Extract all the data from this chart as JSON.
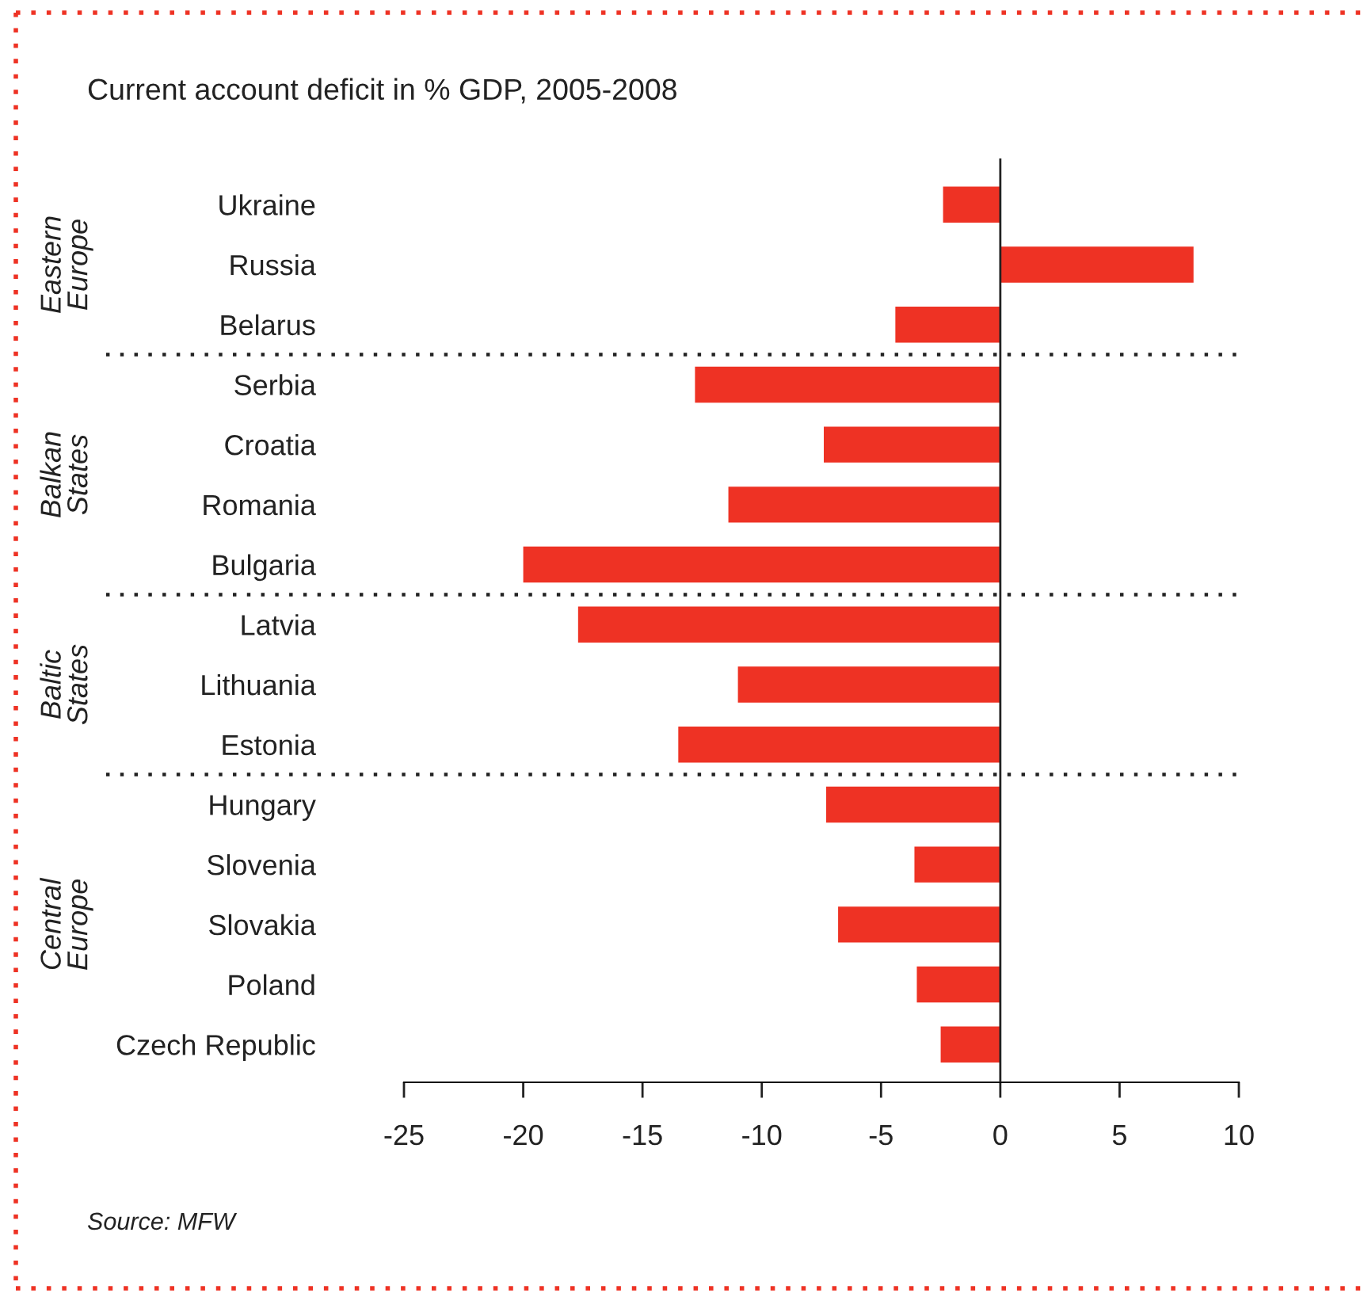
{
  "chart_data": {
    "type": "bar",
    "orientation": "horizontal",
    "title": "Current account deficit in % GDP, 2005-2008",
    "categories": [
      "Ukraine",
      "Russia",
      "Belarus",
      "Serbia",
      "Croatia",
      "Romania",
      "Bulgaria",
      "Latvia",
      "Lithuania",
      "Estonia",
      "Hungary",
      "Slovenia",
      "Slovakia",
      "Poland",
      "Czech Republic"
    ],
    "values": [
      -2.4,
      8.1,
      -4.4,
      -12.8,
      -7.4,
      -11.4,
      -20.0,
      -17.7,
      -11.0,
      -13.5,
      -7.3,
      -3.6,
      -6.8,
      -3.5,
      -2.5
    ],
    "color": "#ee3224",
    "xlim": [
      -25,
      10
    ],
    "xticks": [
      -25,
      -20,
      -15,
      -10,
      -5,
      0,
      5,
      10
    ],
    "grid": false,
    "legend": false,
    "annotations": [
      "Eastern\nEurope",
      "Balkan\nStates",
      "Baltic\nStates",
      "Central\nEurope",
      "Source: MFW"
    ]
  }
}
